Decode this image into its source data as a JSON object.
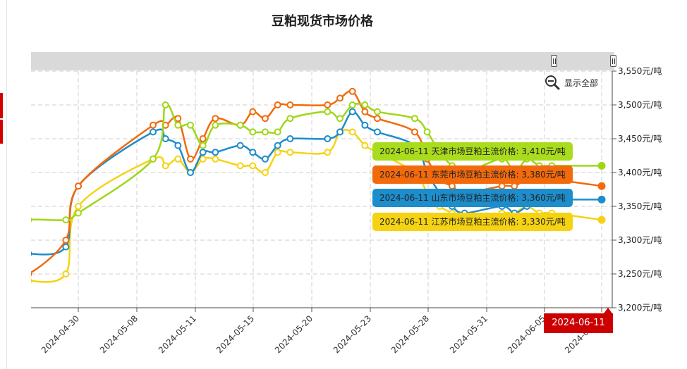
{
  "colors": {
    "tianjin": "#9fd717",
    "dongguan": "#f26a0c",
    "shandong": "#1d8dcb",
    "jiangsu": "#f5d313",
    "marker": "#cc0000"
  },
  "zoom": {
    "icon": "zoom-out-icon",
    "label": "显示全部"
  },
  "date_marker": "2024-06-11",
  "tooltips": [
    {
      "text": "2024-06-11 天津市场豆粕主流价格: 3,410元/吨",
      "color": "#a9dc1c"
    },
    {
      "text": "2024-06-11 东莞市场豆粕主流价格: 3,380元/吨",
      "color": "#f26a0c"
    },
    {
      "text": "2024-06-11 山东市场豆粕主流价格: 3,360元/吨",
      "color": "#1d8dcb"
    },
    {
      "text": "2024-06-11 江苏市场豆粕主流价格: 3,330元/吨",
      "color": "#f5d313"
    }
  ],
  "chart_data": {
    "type": "line",
    "title": "豆粕现货市场价格",
    "y_unit": "元/吨",
    "ylim": [
      3200,
      3550
    ],
    "y_ticks": [
      "3,550元/吨",
      "3,500元/吨",
      "3,450元/吨",
      "3,400元/吨",
      "3,350元/吨",
      "3,300元/吨",
      "3,250元/吨",
      "3,200元/吨"
    ],
    "x_ticks": [
      "2024-04-30",
      "2024-05-08",
      "2024-05-11",
      "2024-05-15",
      "2024-05-20",
      "2024-05-23",
      "2024-05-28",
      "2024-05-31",
      "2024-06-05",
      "2024-06-11"
    ],
    "grid": true,
    "x": [
      "2024-04-25",
      "2024-04-26",
      "2024-04-29",
      "2024-04-30",
      "2024-05-06",
      "2024-05-07",
      "2024-05-08",
      "2024-05-09",
      "2024-05-10",
      "2024-05-11",
      "2024-05-13",
      "2024-05-14",
      "2024-05-15",
      "2024-05-16",
      "2024-05-17",
      "2024-05-20",
      "2024-05-21",
      "2024-05-22",
      "2024-05-23",
      "2024-05-24",
      "2024-05-27",
      "2024-05-28",
      "2024-05-29",
      "2024-05-30",
      "2024-05-31",
      "2024-06-03",
      "2024-06-04",
      "2024-06-05",
      "2024-06-06",
      "2024-06-07",
      "2024-06-11"
    ],
    "series": [
      {
        "name": "天津市场豆粕主流价格",
        "color": "#9fd717",
        "values": [
          3320,
          3330,
          3330,
          3340,
          3420,
          3500,
          3470,
          3470,
          3440,
          3470,
          3470,
          3460,
          3460,
          3460,
          3480,
          3490,
          3480,
          3500,
          3500,
          3490,
          3480,
          3460,
          3430,
          3410,
          3400,
          3420,
          3400,
          3420,
          3410,
          3410,
          3410
        ]
      },
      {
        "name": "东莞市场豆粕主流价格",
        "color": "#f26a0c",
        "values": [
          3260,
          3250,
          3300,
          3380,
          3470,
          3470,
          3480,
          3420,
          3450,
          3480,
          3470,
          3490,
          3480,
          3500,
          3500,
          3500,
          3510,
          3520,
          3490,
          3480,
          3460,
          3420,
          3390,
          3380,
          3370,
          3380,
          3380,
          3390,
          3390,
          3390,
          3380
        ]
      },
      {
        "name": "山东市场豆粕主流价格",
        "color": "#1d8dcb",
        "values": [
          3290,
          3280,
          3290,
          3380,
          3460,
          3450,
          3440,
          3400,
          3430,
          3430,
          3440,
          3430,
          3420,
          3440,
          3450,
          3450,
          3460,
          3490,
          3470,
          3460,
          3440,
          3400,
          3370,
          3350,
          3340,
          3350,
          3340,
          3350,
          3360,
          3360,
          3360
        ]
      },
      {
        "name": "江苏市场豆粕主流价格",
        "color": "#f5d313",
        "values": [
          3250,
          3240,
          3250,
          3350,
          3420,
          3410,
          3420,
          3400,
          3420,
          3420,
          3410,
          3410,
          3400,
          3430,
          3430,
          3430,
          3460,
          3460,
          3440,
          3430,
          3400,
          3370,
          3350,
          3340,
          3330,
          3340,
          3340,
          3350,
          3340,
          3340,
          3330
        ]
      }
    ]
  }
}
